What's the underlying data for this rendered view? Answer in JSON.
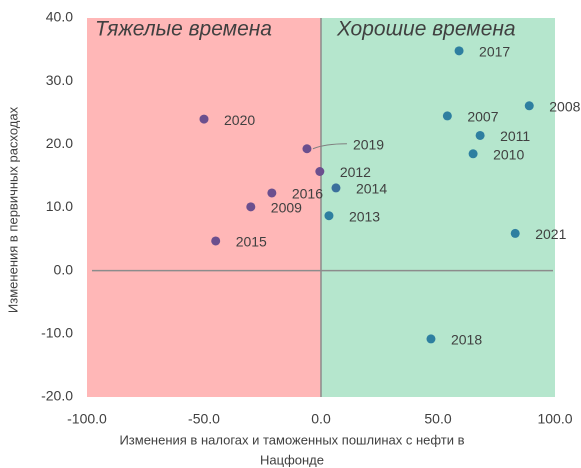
{
  "chart_data": {
    "type": "scatter",
    "annotations": [
      "Тяжелые времена",
      "Хорошие времена"
    ],
    "xlabel": [
      "Изменения в налогах и таможенных пошлинах с нефти в",
      "Нацфонде"
    ],
    "ylabel": "Изменения в первичных расходах",
    "point_labels": [
      "2017",
      "2008",
      "2007",
      "2011",
      "2010",
      "2021",
      "2018",
      "2020",
      "2019",
      "2012",
      "2014",
      "2016",
      "2013",
      "2009",
      "2015"
    ],
    "x": [
      59,
      89,
      54,
      68,
      65,
      83,
      47,
      -50,
      -6,
      -0.5,
      6.4,
      -21,
      3.4,
      -30,
      -45
    ],
    "values": [
      34.8,
      26.1,
      24.5,
      21.4,
      18.5,
      5.9,
      -10.8,
      24,
      19.3,
      15.7,
      13.1,
      12.3,
      8.7,
      10.1,
      4.7
    ],
    "colors": [
      "#2e7fa0",
      "#2e7fa0",
      "#2e7fa0",
      "#2e7fa0",
      "#2e7fa0",
      "#2e7fa0",
      "#2e7fa0",
      "#6b4f8e",
      "#6b4f8e",
      "#6b4f8e",
      "#3b6f9c",
      "#6b4f8e",
      "#2e7fa0",
      "#6b4f8e",
      "#6b4f8e"
    ],
    "xlim": [
      -100,
      100
    ],
    "xticks": [
      {
        "value": -100,
        "label": "-100.0"
      },
      {
        "value": -50,
        "label": "-50.0"
      },
      {
        "value": 0,
        "label": "0.0"
      },
      {
        "value": 50,
        "label": "50.0"
      },
      {
        "value": 100,
        "label": "100.0"
      }
    ],
    "ylim": [
      -20,
      40
    ],
    "yticks": [
      {
        "value": -20,
        "label": "-20.0"
      },
      {
        "value": -10,
        "label": "-10.0"
      },
      {
        "value": 0,
        "label": "0.0"
      },
      {
        "value": 10,
        "label": "10.0"
      },
      {
        "value": 20,
        "label": "20.0"
      },
      {
        "value": 30,
        "label": "30.0"
      },
      {
        "value": 40,
        "label": "40.0"
      }
    ],
    "region_colors": [
      "#ffb7b7",
      "#b5e6cd"
    ],
    "annotation_colors": [
      "#e8192c",
      "#1a9a4a"
    ]
  }
}
